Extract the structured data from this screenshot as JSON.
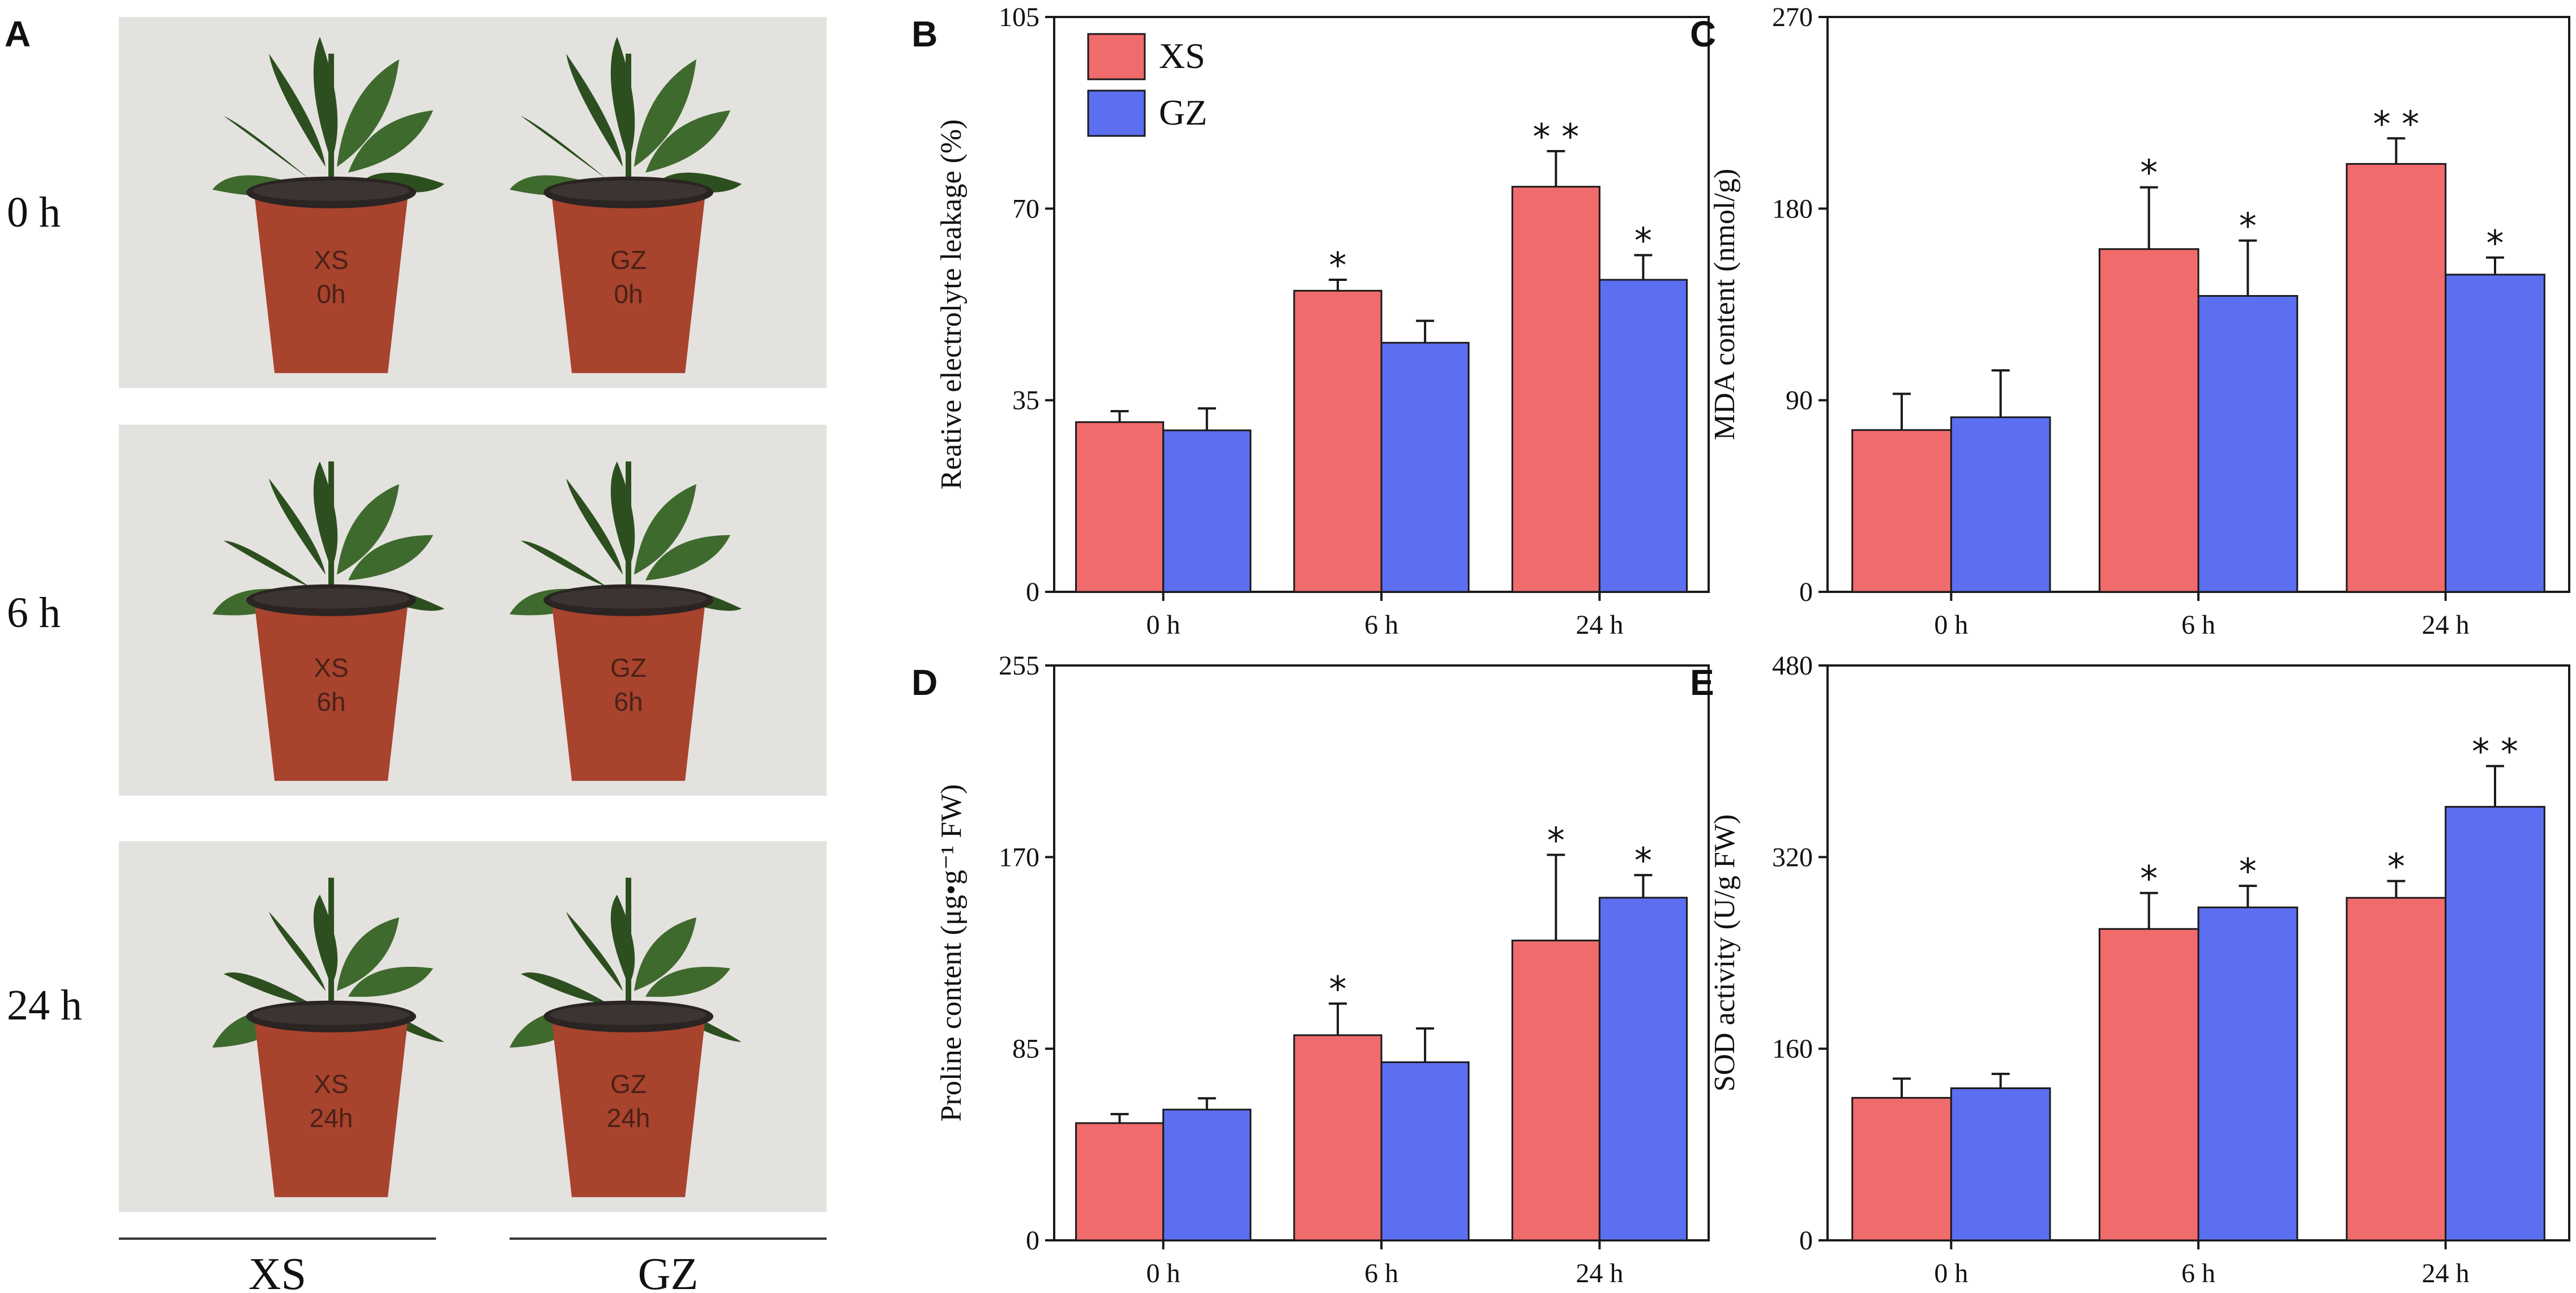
{
  "panel_a": {
    "letter": "A",
    "row_labels": [
      "0 h",
      "6 h",
      "24 h"
    ],
    "col_labels": [
      "XS",
      "GZ"
    ],
    "pot_labels": [
      [
        "XS\n0h",
        "GZ\n0h"
      ],
      [
        "XS\n6h",
        "GZ\n6h"
      ],
      [
        "XS\n24h",
        "GZ\n24h"
      ]
    ]
  },
  "colors": {
    "xs": "#f06b6b",
    "gz": "#5b6ff0",
    "axis": "#1a1a1a",
    "photo_bg": "#e4e2de",
    "pot": "#a8432e",
    "pot_dark": "#7e2d1e",
    "leaf": "#3f6a2e",
    "leaf_dark": "#2d4f20"
  },
  "chart_data": [
    {
      "panel": "B",
      "type": "bar",
      "title": "",
      "xlabel": "",
      "ylabel": "Reative electrolyte leakage (%)",
      "ylim": [
        0,
        105
      ],
      "yticks": [
        0,
        35,
        70,
        105
      ],
      "categories": [
        "0 h",
        "6 h",
        "24 h"
      ],
      "legend": [
        "XS",
        "GZ"
      ],
      "legend_position": "top-left",
      "series": [
        {
          "name": "XS",
          "values": [
            31,
            55,
            74
          ],
          "errors": [
            2,
            2,
            6.5
          ],
          "stars": [
            "",
            "*",
            "* *"
          ]
        },
        {
          "name": "GZ",
          "values": [
            29.5,
            45.5,
            57
          ],
          "errors": [
            4,
            4,
            4.5
          ],
          "stars": [
            "",
            "",
            "*"
          ]
        }
      ]
    },
    {
      "panel": "C",
      "type": "bar",
      "title": "",
      "xlabel": "",
      "ylabel": "MDA content (nmol/g)",
      "ylim": [
        0,
        270
      ],
      "yticks": [
        0,
        90,
        180,
        270
      ],
      "categories": [
        "0 h",
        "6 h",
        "24 h"
      ],
      "legend": [],
      "series": [
        {
          "name": "XS",
          "values": [
            76,
            161,
            201
          ],
          "errors": [
            17,
            29,
            12
          ],
          "stars": [
            "",
            "*",
            "* *"
          ]
        },
        {
          "name": "GZ",
          "values": [
            82,
            139,
            149
          ],
          "errors": [
            22,
            26,
            8
          ],
          "stars": [
            "",
            "*",
            "*"
          ]
        }
      ]
    },
    {
      "panel": "D",
      "type": "bar",
      "title": "",
      "xlabel": "",
      "ylabel": "Proline content (μg•g⁻¹ FW)",
      "ylim": [
        0,
        255
      ],
      "yticks": [
        0,
        85,
        170,
        255
      ],
      "categories": [
        "0 h",
        "6 h",
        "24 h"
      ],
      "legend": [],
      "series": [
        {
          "name": "XS",
          "values": [
            52,
            91,
            133
          ],
          "errors": [
            4,
            14,
            38
          ],
          "stars": [
            "",
            "*",
            "*"
          ]
        },
        {
          "name": "GZ",
          "values": [
            58,
            79,
            152
          ],
          "errors": [
            5,
            15,
            10
          ],
          "stars": [
            "",
            "",
            "*"
          ]
        }
      ]
    },
    {
      "panel": "E",
      "type": "bar",
      "title": "",
      "xlabel": "",
      "ylabel": "SOD activity (U/g FW)",
      "ylim": [
        0,
        480
      ],
      "yticks": [
        0,
        160,
        320,
        480
      ],
      "categories": [
        "0 h",
        "6 h",
        "24 h"
      ],
      "legend": [],
      "series": [
        {
          "name": "XS",
          "values": [
            119,
            260,
            286
          ],
          "errors": [
            16,
            30,
            14
          ],
          "stars": [
            "",
            "*",
            "*"
          ]
        },
        {
          "name": "GZ",
          "values": [
            127,
            278,
            362
          ],
          "errors": [
            12,
            18,
            34
          ],
          "stars": [
            "",
            "*",
            "* *"
          ]
        }
      ]
    }
  ]
}
